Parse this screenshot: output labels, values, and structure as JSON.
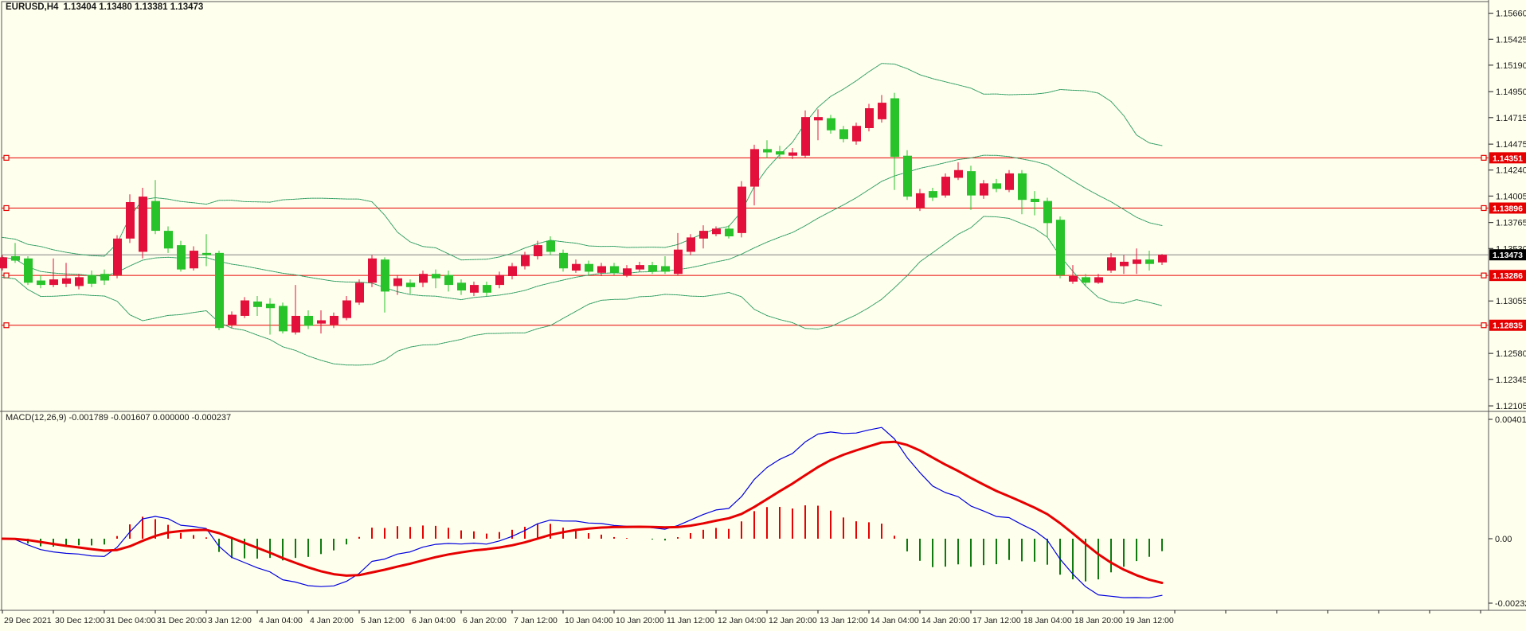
{
  "header": {
    "symbol": "EURUSD,H4",
    "quotes": "1.13404 1.13480 1.13381 1.13473"
  },
  "macd_label": "MACD(12,26,9) -0.001789 -0.001607 0.000000 -0.000237",
  "colors": {
    "background": "#ffffee",
    "frame": "#555555",
    "bull_candle": "#e2103a",
    "bear_candle": "#28c32b",
    "band_line": "#2f9e63",
    "hline": "#e60000",
    "hline_badge_bg": "#e60000",
    "hline_badge_text": "#ffffff",
    "current_line": "#808080",
    "current_badge_bg": "#000000",
    "current_badge_text": "#ffffff",
    "macd_line": "#0000dd",
    "signal_line": "#e60000",
    "hist_pos": "#e60000",
    "hist_neg": "#0e7a0e",
    "axis_text": "#1a1a1a"
  },
  "chart_data": {
    "type": "candlestick",
    "title": "EURUSD,H4",
    "symbol": "EURUSD",
    "timeframe": "H4",
    "current_ohlc": {
      "open": 1.13404,
      "high": 1.1348,
      "low": 1.13381,
      "close": 1.13473
    },
    "ylim": [
      1.12055,
      1.15708
    ],
    "macd_ylim": [
      -0.002336,
      0.0041
    ],
    "grid": false,
    "y_axis_ticks": [
      "1.15660",
      "1.15425",
      "1.15190",
      "1.14950",
      "1.14715",
      "1.14475",
      "1.14240",
      "1.14005",
      "1.13765",
      "1.13530",
      "1.13055",
      "1.12580",
      "1.12345",
      "1.12105"
    ],
    "y_axis_tick_values": [
      1.1566,
      1.15425,
      1.1519,
      1.1495,
      1.14715,
      1.14475,
      1.1424,
      1.14005,
      1.13765,
      1.1353,
      1.13055,
      1.1258,
      1.12345,
      1.12105
    ],
    "price_lines": [
      {
        "price": 1.14351,
        "label": "1.14351"
      },
      {
        "price": 1.13896,
        "label": "1.13896"
      },
      {
        "price": 1.13286,
        "label": "1.13286"
      },
      {
        "price": 1.12835,
        "label": "1.12835"
      }
    ],
    "current_price": {
      "price": 1.13473,
      "label": "1.13473"
    },
    "x_labels": [
      "29 Dec 2021",
      "30 Dec 12:00",
      "31 Dec 04:00",
      "31 Dec 20:00",
      "3 Jan 12:00",
      "4 Jan 04:00",
      "4 Jan 20:00",
      "5 Jan 12:00",
      "6 Jan 04:00",
      "6 Jan 20:00",
      "7 Jan 12:00",
      "10 Jan 04:00",
      "10 Jan 20:00",
      "11 Jan 12:00",
      "12 Jan 04:00",
      "12 Jan 20:00",
      "13 Jan 12:00",
      "14 Jan 04:00",
      "14 Jan 20:00",
      "17 Jan 12:00",
      "18 Jan 04:00",
      "18 Jan 20:00",
      "19 Jan 12:00"
    ],
    "x_label_every_n_candles": 4,
    "candles": [
      [
        1.1335,
        1.1347,
        1.1333,
        1.1345
      ],
      [
        1.1346,
        1.1358,
        1.134,
        1.1342
      ],
      [
        1.1344,
        1.1346,
        1.132,
        1.1322
      ],
      [
        1.1324,
        1.1329,
        1.1317,
        1.132
      ],
      [
        1.132,
        1.1344,
        1.1318,
        1.1325
      ],
      [
        1.1321,
        1.134,
        1.1318,
        1.1326
      ],
      [
        1.1319,
        1.133,
        1.1316,
        1.1327
      ],
      [
        1.1329,
        1.1333,
        1.1318,
        1.1321
      ],
      [
        1.133,
        1.1334,
        1.132,
        1.1324
      ],
      [
        1.1329,
        1.1365,
        1.1326,
        1.1362
      ],
      [
        1.1362,
        1.1402,
        1.1358,
        1.1395
      ],
      [
        1.135,
        1.1408,
        1.1344,
        1.14
      ],
      [
        1.1396,
        1.1415,
        1.1366,
        1.1369
      ],
      [
        1.1369,
        1.1373,
        1.1349,
        1.1353
      ],
      [
        1.1356,
        1.136,
        1.1332,
        1.1334
      ],
      [
        1.1335,
        1.1355,
        1.1333,
        1.1351
      ],
      [
        1.1349,
        1.1366,
        1.1337,
        1.1347
      ],
      [
        1.1349,
        1.1351,
        1.1279,
        1.1281
      ],
      [
        1.1284,
        1.1296,
        1.1281,
        1.1293
      ],
      [
        1.1292,
        1.1309,
        1.129,
        1.1306
      ],
      [
        1.1305,
        1.131,
        1.1292,
        1.13
      ],
      [
        1.1303,
        1.1308,
        1.1275,
        1.1299
      ],
      [
        1.1301,
        1.1304,
        1.1276,
        1.1278
      ],
      [
        1.1277,
        1.132,
        1.1275,
        1.1292
      ],
      [
        1.1292,
        1.1297,
        1.128,
        1.1283
      ],
      [
        1.1285,
        1.1297,
        1.1276,
        1.1288
      ],
      [
        1.1284,
        1.1295,
        1.1281,
        1.1292
      ],
      [
        1.129,
        1.131,
        1.1288,
        1.1306
      ],
      [
        1.1304,
        1.1325,
        1.1302,
        1.1322
      ],
      [
        1.1322,
        1.1347,
        1.1318,
        1.1344
      ],
      [
        1.1343,
        1.1345,
        1.1295,
        1.1314
      ],
      [
        1.1319,
        1.1329,
        1.1311,
        1.1326
      ],
      [
        1.1322,
        1.1325,
        1.1312,
        1.1318
      ],
      [
        1.1322,
        1.1333,
        1.1318,
        1.133
      ],
      [
        1.133,
        1.1334,
        1.1317,
        1.1326
      ],
      [
        1.1329,
        1.1333,
        1.1314,
        1.132
      ],
      [
        1.1322,
        1.1325,
        1.1311,
        1.1315
      ],
      [
        1.1313,
        1.1323,
        1.131,
        1.132
      ],
      [
        1.132,
        1.1323,
        1.131,
        1.1313
      ],
      [
        1.132,
        1.1332,
        1.1317,
        1.1329
      ],
      [
        1.1328,
        1.134,
        1.1325,
        1.1337
      ],
      [
        1.1337,
        1.135,
        1.1334,
        1.1347
      ],
      [
        1.1346,
        1.136,
        1.1343,
        1.1356
      ],
      [
        1.136,
        1.1364,
        1.1347,
        1.135
      ],
      [
        1.1349,
        1.1352,
        1.1332,
        1.1335
      ],
      [
        1.1333,
        1.1343,
        1.1331,
        1.1339
      ],
      [
        1.1339,
        1.1342,
        1.1329,
        1.1332
      ],
      [
        1.1331,
        1.134,
        1.1328,
        1.1337
      ],
      [
        1.1337,
        1.134,
        1.1329,
        1.1331
      ],
      [
        1.1329,
        1.1338,
        1.1327,
        1.1335
      ],
      [
        1.1334,
        1.1341,
        1.1332,
        1.1338
      ],
      [
        1.1338,
        1.1341,
        1.133,
        1.1332
      ],
      [
        1.1337,
        1.1346,
        1.133,
        1.1332
      ],
      [
        1.133,
        1.1367,
        1.1329,
        1.1352
      ],
      [
        1.135,
        1.1366,
        1.1347,
        1.1363
      ],
      [
        1.1362,
        1.1374,
        1.1353,
        1.1369
      ],
      [
        1.1366,
        1.1373,
        1.1364,
        1.1371
      ],
      [
        1.1371,
        1.1374,
        1.1362,
        1.1364
      ],
      [
        1.1367,
        1.1414,
        1.1363,
        1.1409
      ],
      [
        1.1409,
        1.1447,
        1.1392,
        1.1443
      ],
      [
        1.1443,
        1.1451,
        1.1435,
        1.144
      ],
      [
        1.1441,
        1.1446,
        1.1434,
        1.1438
      ],
      [
        1.1437,
        1.1444,
        1.1434,
        1.144
      ],
      [
        1.1437,
        1.1478,
        1.1435,
        1.1472
      ],
      [
        1.1469,
        1.1479,
        1.1451,
        1.1472
      ],
      [
        1.1471,
        1.1474,
        1.1457,
        1.146
      ],
      [
        1.1461,
        1.1464,
        1.1449,
        1.1452
      ],
      [
        1.145,
        1.1467,
        1.1447,
        1.1464
      ],
      [
        1.1462,
        1.1484,
        1.1459,
        1.148
      ],
      [
        1.147,
        1.1492,
        1.1467,
        1.1485
      ],
      [
        1.1489,
        1.1494,
        1.1406,
        1.1436
      ],
      [
        1.1437,
        1.1442,
        1.1397,
        1.14
      ],
      [
        1.139,
        1.1407,
        1.1387,
        1.1403
      ],
      [
        1.1405,
        1.1408,
        1.1396,
        1.1399
      ],
      [
        1.1401,
        1.1421,
        1.1399,
        1.1418
      ],
      [
        1.1417,
        1.1431,
        1.1415,
        1.1424
      ],
      [
        1.1423,
        1.1428,
        1.1388,
        1.1401
      ],
      [
        1.1401,
        1.1415,
        1.1398,
        1.1412
      ],
      [
        1.1412,
        1.1416,
        1.1404,
        1.1407
      ],
      [
        1.1406,
        1.1424,
        1.1404,
        1.1421
      ],
      [
        1.1421,
        1.1424,
        1.1384,
        1.1397
      ],
      [
        1.1398,
        1.1405,
        1.1383,
        1.1395
      ],
      [
        1.1396,
        1.1399,
        1.1363,
        1.1376
      ],
      [
        1.1379,
        1.1382,
        1.1326,
        1.1329
      ],
      [
        1.1323,
        1.1338,
        1.1321,
        1.1328
      ],
      [
        1.1327,
        1.133,
        1.1319,
        1.1322
      ],
      [
        1.1322,
        1.133,
        1.1321,
        1.1327
      ],
      [
        1.1333,
        1.1349,
        1.1331,
        1.1345
      ],
      [
        1.1337,
        1.1347,
        1.133,
        1.1341
      ],
      [
        1.1339,
        1.1353,
        1.133,
        1.1343
      ],
      [
        1.1343,
        1.1351,
        1.1333,
        1.1339
      ],
      [
        1.13404,
        1.1348,
        1.13381,
        1.13473
      ]
    ],
    "indicators": {
      "bollinger": {
        "period": 20,
        "deviations": 2
      },
      "macd": {
        "fast": 12,
        "slow": 26,
        "signal": 9,
        "label": "MACD(12,26,9)",
        "values": [
          "-0.001789",
          "-0.001607",
          "0.000000",
          "-0.000237"
        ],
        "axis_labels": [
          "0.004011",
          "0.00",
          "-0.002322"
        ],
        "axis_label_values": [
          0.004011,
          0.0,
          -0.002322
        ]
      }
    }
  }
}
